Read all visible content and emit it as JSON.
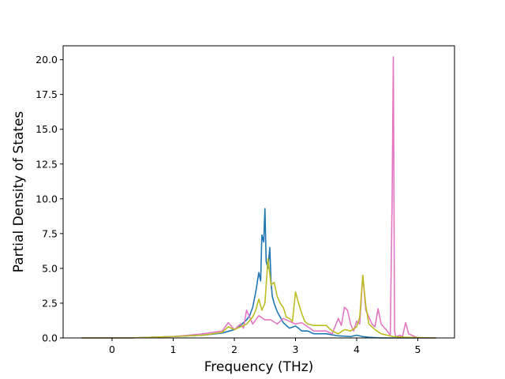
{
  "chart_data": {
    "type": "line",
    "title": "",
    "xlabel": "Frequency (THz)",
    "ylabel": "Partial Density of States",
    "xlim": [
      -0.8,
      5.6
    ],
    "ylim": [
      0,
      21
    ],
    "xticks": [
      0,
      1,
      2,
      3,
      4,
      5
    ],
    "yticks": [
      0.0,
      2.5,
      5.0,
      7.5,
      10.0,
      12.5,
      15.0,
      17.5,
      20.0
    ],
    "xtick_labels": [
      "0",
      "1",
      "2",
      "3",
      "4",
      "5"
    ],
    "ytick_labels": [
      "0.0",
      "2.5",
      "5.0",
      "7.5",
      "10.0",
      "12.5",
      "15.0",
      "17.5",
      "20.0"
    ],
    "grid": false,
    "legend": null,
    "series": [
      {
        "color": "#1f77b4",
        "x": [
          -0.5,
          0.3,
          1.0,
          1.5,
          1.8,
          2.0,
          2.1,
          2.2,
          2.25,
          2.3,
          2.35,
          2.4,
          2.43,
          2.45,
          2.48,
          2.5,
          2.52,
          2.55,
          2.58,
          2.6,
          2.62,
          2.65,
          2.7,
          2.75,
          2.8,
          2.9,
          3.0,
          3.05,
          3.1,
          3.2,
          3.3,
          3.5,
          3.7,
          3.9,
          4.0,
          4.1,
          4.2,
          4.4,
          5.3
        ],
        "y": [
          0,
          0,
          0.1,
          0.2,
          0.35,
          0.6,
          0.9,
          1.3,
          1.6,
          2.2,
          3.3,
          4.7,
          4.1,
          7.4,
          6.9,
          9.3,
          5.5,
          5.0,
          6.5,
          4.0,
          3.0,
          2.5,
          1.9,
          1.5,
          1.1,
          0.7,
          0.85,
          0.7,
          0.5,
          0.5,
          0.3,
          0.3,
          0.15,
          0.1,
          0.2,
          0.1,
          0.05,
          0,
          0
        ]
      },
      {
        "color": "#e377c2",
        "x": [
          -0.5,
          0.3,
          1.0,
          1.5,
          1.8,
          1.9,
          2.0,
          2.1,
          2.15,
          2.2,
          2.3,
          2.4,
          2.5,
          2.6,
          2.7,
          2.8,
          2.9,
          3.0,
          3.1,
          3.2,
          3.3,
          3.5,
          3.6,
          3.7,
          3.75,
          3.8,
          3.85,
          3.9,
          3.95,
          4.0,
          4.05,
          4.1,
          4.15,
          4.2,
          4.25,
          4.3,
          4.35,
          4.4,
          4.5,
          4.55,
          4.58,
          4.6,
          4.62,
          4.64,
          4.66,
          4.7,
          4.75,
          4.8,
          4.82,
          4.85,
          4.9,
          5.0,
          5.3
        ],
        "y": [
          0,
          0,
          0.1,
          0.3,
          0.5,
          1.1,
          0.6,
          1.0,
          0.7,
          2.0,
          1.0,
          1.6,
          1.3,
          1.3,
          1.0,
          1.4,
          1.2,
          1.0,
          1.1,
          0.8,
          0.5,
          0.5,
          0.3,
          1.4,
          0.9,
          2.2,
          2.0,
          1.0,
          0.5,
          1.2,
          1.0,
          4.5,
          2.0,
          1.5,
          1.0,
          0.8,
          2.1,
          1.0,
          0.5,
          0.2,
          10.0,
          20.2,
          0.5,
          0.1,
          0.1,
          0.2,
          0.1,
          1.1,
          0.8,
          0.3,
          0.2,
          0,
          0
        ]
      },
      {
        "color": "#bcbd22",
        "x": [
          -0.5,
          0.3,
          1.0,
          1.5,
          1.8,
          1.9,
          2.0,
          2.1,
          2.2,
          2.3,
          2.35,
          2.4,
          2.45,
          2.5,
          2.55,
          2.6,
          2.65,
          2.7,
          2.75,
          2.8,
          2.85,
          2.9,
          2.95,
          3.0,
          3.05,
          3.1,
          3.15,
          3.2,
          3.3,
          3.4,
          3.5,
          3.6,
          3.7,
          3.8,
          3.9,
          4.0,
          4.05,
          4.1,
          4.15,
          4.2,
          4.3,
          4.4,
          4.5,
          4.6,
          4.8,
          5.3
        ],
        "y": [
          0,
          0,
          0.1,
          0.2,
          0.4,
          0.8,
          0.6,
          0.8,
          1.0,
          1.5,
          2.0,
          2.8,
          2.0,
          2.5,
          5.7,
          3.8,
          4.0,
          3.0,
          2.5,
          2.2,
          1.5,
          1.4,
          1.2,
          3.3,
          2.5,
          1.8,
          1.2,
          1.0,
          0.9,
          0.9,
          0.9,
          0.5,
          0.3,
          0.6,
          0.5,
          0.8,
          1.5,
          4.5,
          2.3,
          1.0,
          0.6,
          0.3,
          0.2,
          0.1,
          0.05,
          0
        ]
      }
    ]
  }
}
